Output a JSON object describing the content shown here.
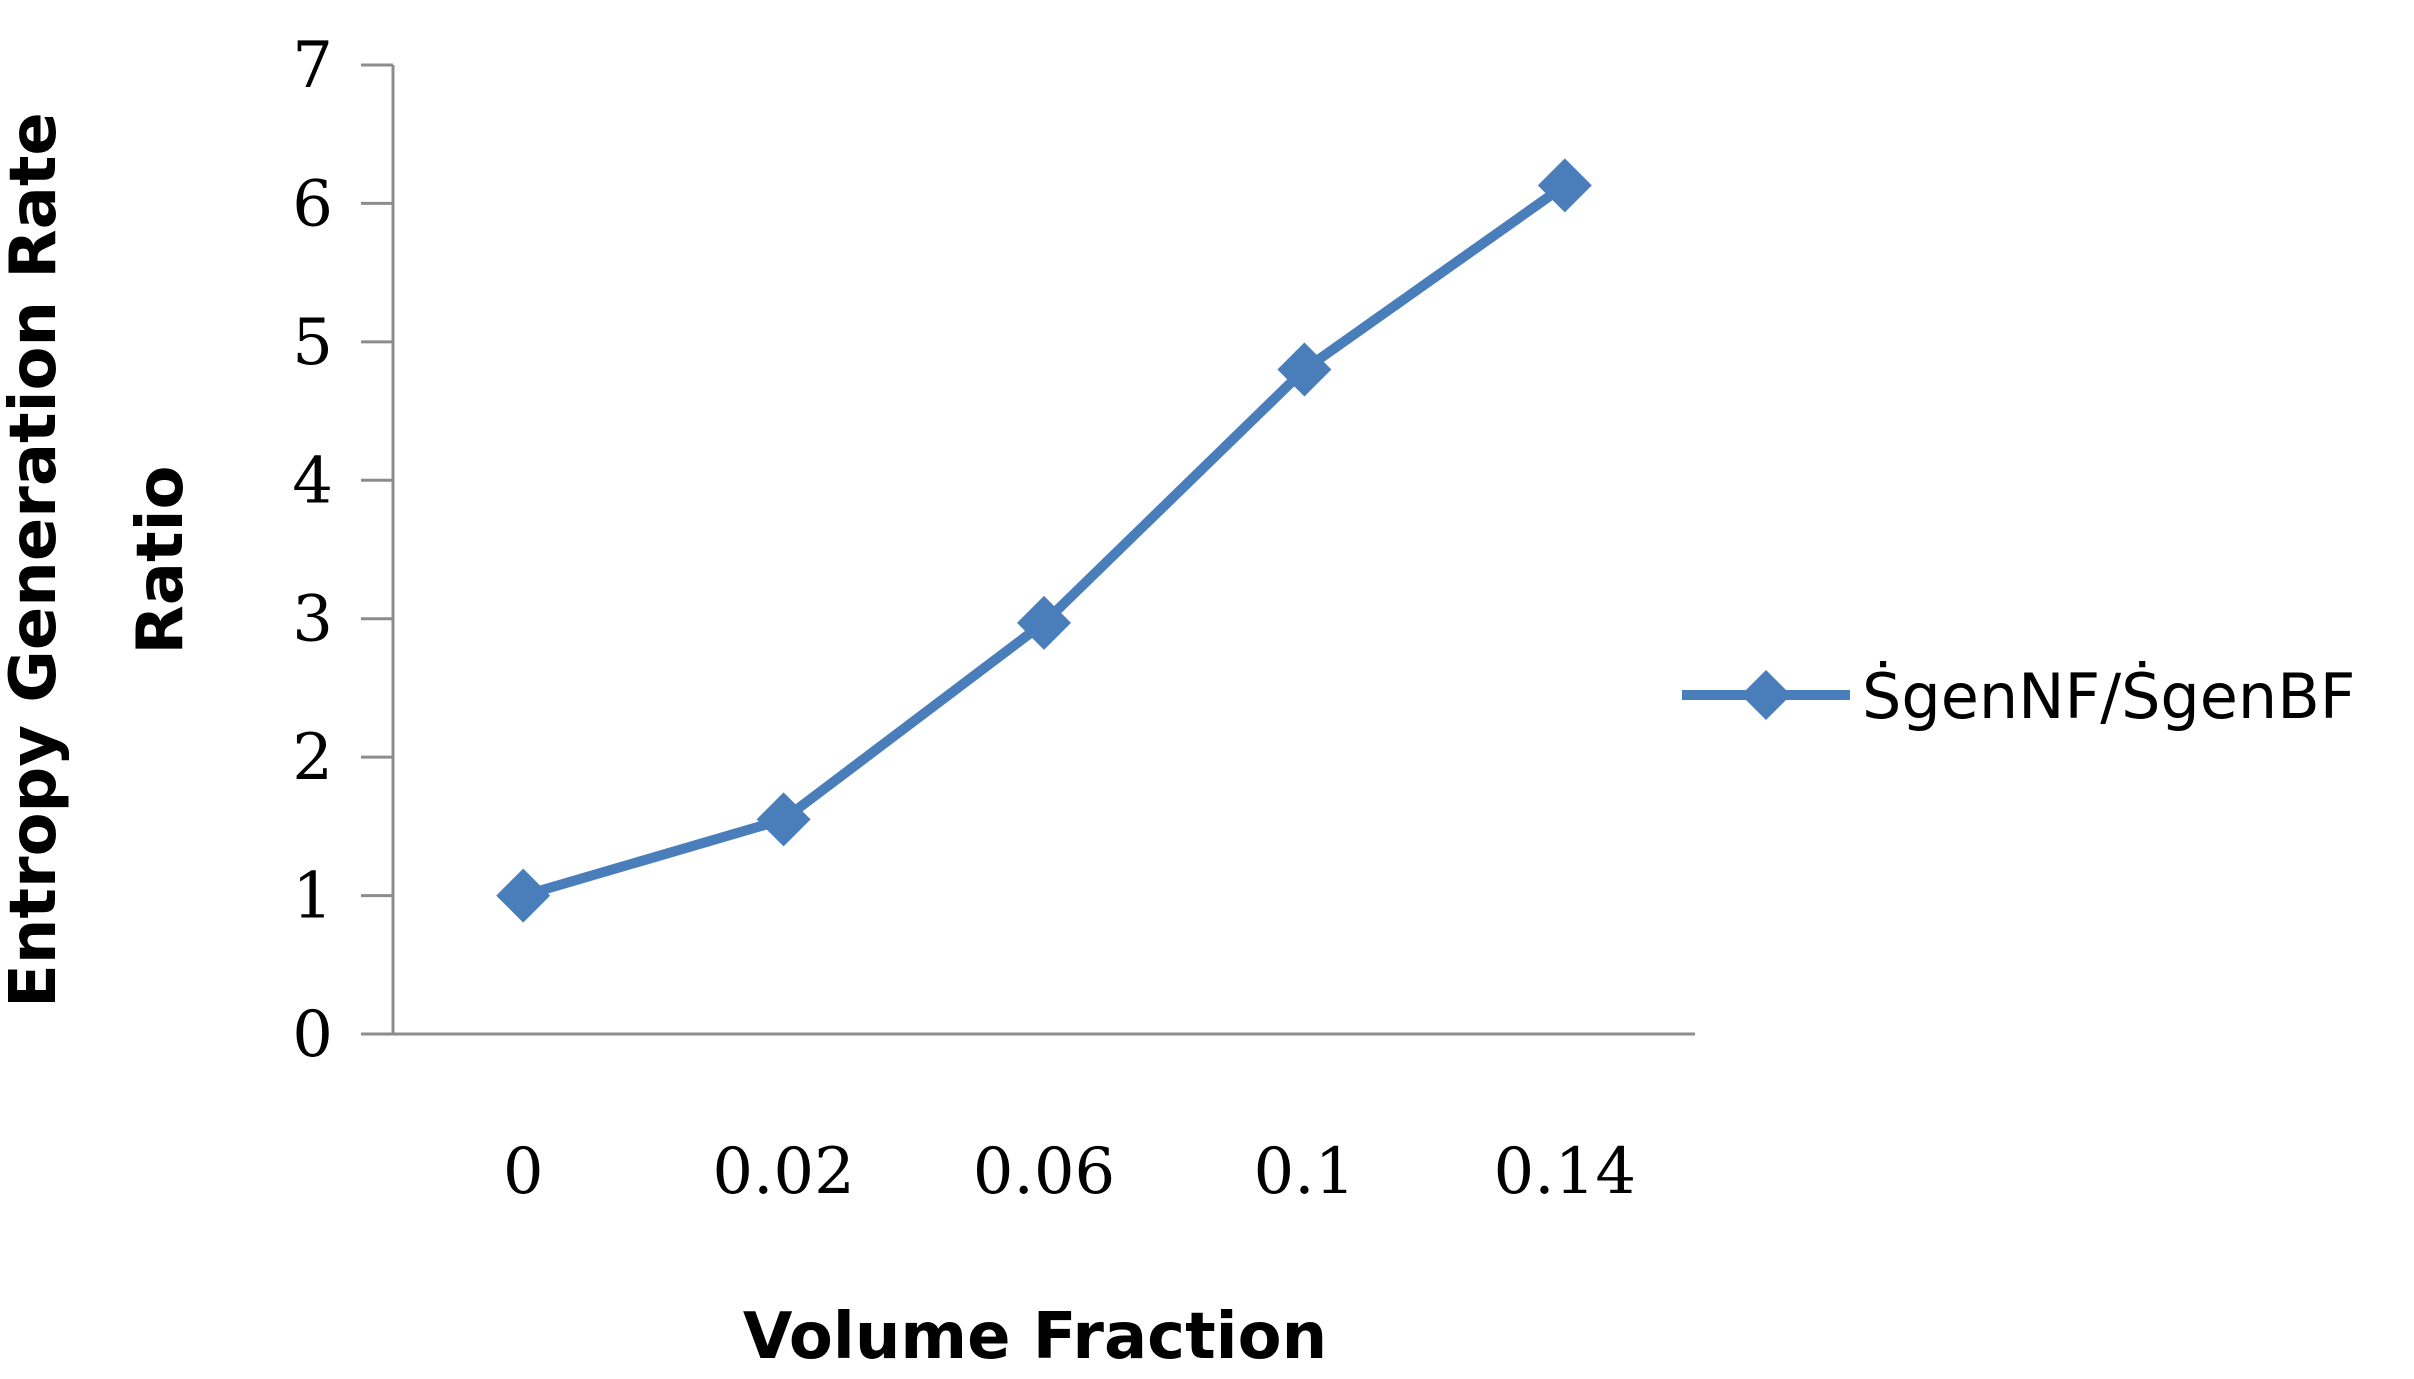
{
  "chart_data": {
    "type": "line",
    "title": "",
    "xlabel": "Volume Fraction",
    "ylabel_line1": "Entropy Generation Rate",
    "ylabel_line2": "Ratio",
    "categories": [
      "0",
      "0.02",
      "0.06",
      "0.1",
      "0.14"
    ],
    "yticks": [
      "0",
      "1",
      "2",
      "3",
      "4",
      "5",
      "6",
      "7"
    ],
    "ylim": [
      0,
      7
    ],
    "grid": false,
    "legend_position": "right",
    "series": [
      {
        "name": "ṠgenNF/ṠgenBF",
        "values": [
          1.0,
          1.55,
          2.97,
          4.8,
          6.13
        ],
        "color": "#4a7ebb",
        "marker": "diamond"
      }
    ]
  }
}
